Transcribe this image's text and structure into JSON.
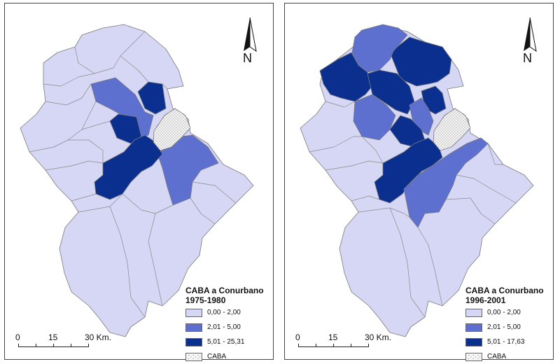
{
  "colors": {
    "class1": "#d6d6f5",
    "class2": "#5d6fcf",
    "class3": "#0a2f8e",
    "caba": "#f6f6f6",
    "border": "#7a7a7a"
  },
  "maps": [
    {
      "id": "left",
      "legend_title_line1": "CABA a Conurbano",
      "legend_title_line2": "1975-1980",
      "legend": [
        {
          "label": "0,00 - 2,00",
          "class": "class1"
        },
        {
          "label": "2,01 - 5,00",
          "class": "class2"
        },
        {
          "label": "5,01 - 25,31",
          "class": "class3"
        },
        {
          "label": "CABA",
          "class": "caba"
        }
      ],
      "scale": {
        "t0": "0",
        "t1": "15",
        "t2": "30 Km."
      },
      "north": "N"
    },
    {
      "id": "right",
      "legend_title_line1": "CABA a Conurbano",
      "legend_title_line2": "1996-2001",
      "legend": [
        {
          "label": "0,00 - 2,00",
          "class": "class1"
        },
        {
          "label": "2,01 - 5,00",
          "class": "class2"
        },
        {
          "label": "5,01 - 17,63",
          "class": "class3"
        },
        {
          "label": "CABA",
          "class": "caba"
        }
      ],
      "scale": {
        "t0": "0",
        "t1": "15",
        "t2": "30 Km."
      },
      "north": "N"
    }
  ]
}
